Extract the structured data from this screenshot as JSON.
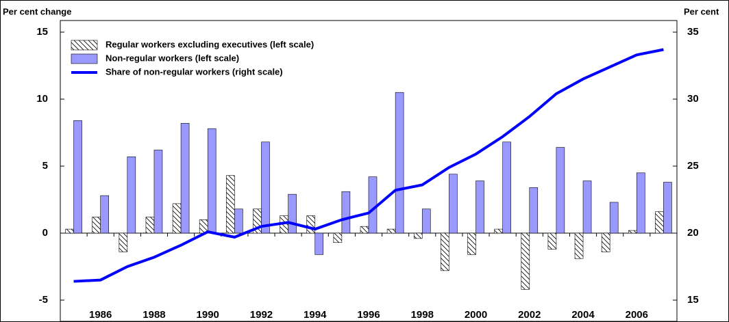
{
  "chart_data": {
    "type": "bar",
    "y_label": "Per cent change",
    "y2_label": "Per cent",
    "categories": [
      "1985",
      "1986",
      "1987",
      "1988",
      "1989",
      "1990",
      "1991",
      "1992",
      "1993",
      "1994",
      "1995",
      "1996",
      "1997",
      "1998",
      "1999",
      "2000",
      "2001",
      "2002",
      "2003",
      "2004",
      "2005",
      "2006",
      "2007"
    ],
    "x_tick_labels": [
      null,
      "1986",
      null,
      "1988",
      null,
      "1990",
      null,
      "1992",
      null,
      "1994",
      null,
      "1996",
      null,
      "1998",
      null,
      "2000",
      null,
      "2002",
      null,
      "2004",
      null,
      "2006",
      null
    ],
    "series": [
      {
        "name": "Regular workers excluding executives (left scale)",
        "type": "bar",
        "pattern": "hatch",
        "color": "#000000",
        "values": [
          0.3,
          1.2,
          -1.4,
          1.2,
          2.2,
          1.0,
          4.3,
          1.8,
          1.3,
          1.3,
          -0.7,
          0.5,
          0.3,
          -0.4,
          -2.8,
          -1.6,
          0.3,
          -4.2,
          -1.2,
          -1.9,
          -1.4,
          0.2,
          1.6
        ]
      },
      {
        "name": "Non-regular workers (left scale)",
        "type": "bar",
        "color": "#9999ff",
        "values": [
          8.4,
          2.8,
          5.7,
          6.2,
          8.2,
          7.8,
          1.8,
          6.8,
          2.9,
          -1.6,
          3.1,
          4.2,
          10.5,
          1.8,
          4.4,
          3.9,
          6.8,
          3.4,
          6.4,
          3.9,
          2.3,
          4.5,
          3.8
        ]
      },
      {
        "name": "Share of non-regular workers (right scale)",
        "type": "line",
        "axis": "y2",
        "color": "#0000ff",
        "values": [
          16.4,
          16.5,
          17.5,
          18.2,
          19.1,
          20.1,
          19.7,
          20.5,
          20.8,
          20.3,
          21.0,
          21.5,
          23.2,
          23.6,
          24.9,
          25.9,
          27.2,
          28.7,
          30.4,
          31.5,
          32.4,
          33.3,
          33.7
        ]
      }
    ],
    "ylim": [
      -5,
      15
    ],
    "yticks": [
      -5,
      0,
      5,
      10,
      15
    ],
    "y2lim": [
      15,
      35
    ],
    "y2ticks": [
      15,
      20,
      25,
      30,
      35
    ],
    "legend": "upper left"
  }
}
